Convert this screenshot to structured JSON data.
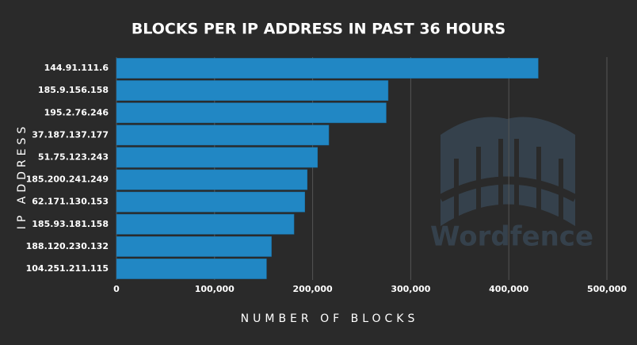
{
  "chart_data": {
    "type": "bar",
    "orientation": "horizontal",
    "title": "BLOCKS PER IP ADDRESS IN PAST 36 HOURS",
    "y_label": "IP ADDRESS",
    "x_label": "NUMBER OF BLOCKS",
    "watermark": "Wordfence",
    "categories": [
      "144.91.111.6",
      "185.9.156.158",
      "195.2.76.246",
      "37.187.137.177",
      "51.75.123.243",
      "185.200.241.249",
      "62.171.130.153",
      "185.93.181.158",
      "188.120.230.132",
      "104.251.211.115"
    ],
    "values": [
      430000,
      277000,
      275000,
      216500,
      205000,
      194500,
      192000,
      181000,
      158000,
      153000
    ],
    "color": "#2187c4",
    "xlim": [
      0,
      500000
    ],
    "xticks": [
      0,
      {
        "value": 100000,
        "label": "100,000"
      },
      {
        "value": 200000,
        "label": "200,000"
      },
      {
        "value": 300000,
        "label": "300,000"
      },
      {
        "value": 400000,
        "label": "400,000"
      },
      {
        "value": 500000,
        "label": "500,000"
      }
    ],
    "grid": true
  }
}
